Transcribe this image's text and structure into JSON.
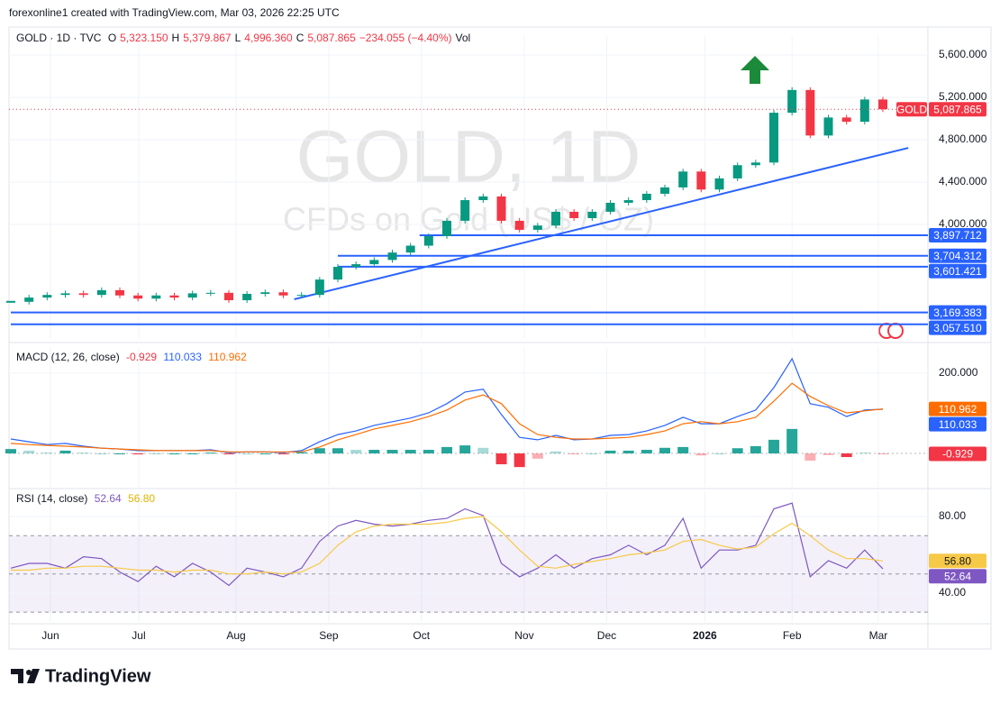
{
  "header": {
    "attribution": "forexonline1 created with TradingView.com, Mar 03, 2026 22:25 UTC",
    "symbol": "GOLD · 1D · TVC",
    "ohlc": [
      {
        "key": "O",
        "value": "5,323.150"
      },
      {
        "key": "H",
        "value": "5,379.867"
      },
      {
        "key": "L",
        "value": "4,996.360"
      },
      {
        "key": "C",
        "value": "5,087.865"
      }
    ],
    "change": "−234.055 (−4.40%)",
    "volume_key": "Vol"
  },
  "footer": {
    "brand": "TradingView"
  },
  "chart_data": [
    {
      "type": "candlestick",
      "title": "GOLD, 1D",
      "subtitle": "CFDs on Gold (US$ / OZ)",
      "badge": "GOLD",
      "up_color": "#089981",
      "down_color": "#f23645",
      "grid": true,
      "values": [
        3270,
        3310,
        3335,
        3350,
        3335,
        3380,
        3330,
        3300,
        3330,
        3310,
        3350,
        3355,
        3285,
        3345,
        3360,
        3330,
        3335,
        3480,
        3600,
        3625,
        3665,
        3735,
        3800,
        3890,
        4035,
        4230,
        4265,
        4035,
        3950,
        3990,
        4120,
        4060,
        4120,
        4205,
        4230,
        4290,
        4350,
        4500,
        4330,
        4435,
        4560,
        4585,
        5055,
        5270,
        4840,
        5010,
        4970,
        5180,
        5087.865
      ],
      "last_value_label": "5,087.865",
      "xlim": [
        0,
        48
      ],
      "xticks": [
        {
          "value": 2.18,
          "label": "Jun"
        },
        {
          "value": 7.04,
          "label": "Jul"
        },
        {
          "value": 12.4,
          "label": "Aug"
        },
        {
          "value": 17.5,
          "label": "Sep"
        },
        {
          "value": 22.6,
          "label": "Oct"
        },
        {
          "value": 28.26,
          "label": "Nov"
        },
        {
          "value": 32.8,
          "label": "Dec"
        },
        {
          "value": 38.2,
          "label": "2026"
        },
        {
          "value": 43.0,
          "label": "Feb"
        },
        {
          "value": 47.75,
          "label": "Mar"
        }
      ],
      "ylim": [
        2928,
        5779
      ],
      "yticks": [
        {
          "value": 4000,
          "label": "4,000.000"
        },
        {
          "value": 4400,
          "label": "4,400.000"
        },
        {
          "value": 4800,
          "label": "4,800.000"
        },
        {
          "value": 5200,
          "label": "5,200.000"
        },
        {
          "value": 5600,
          "label": "5,600.000"
        }
      ],
      "level_color": "#2962ff",
      "levels": [
        {
          "value": 3897.712,
          "label": "3,897.712",
          "start": 22.5
        },
        {
          "value": 3704.312,
          "label": "3,704.312",
          "start": 18
        },
        {
          "value": 3601.421,
          "label": "3,601.421",
          "start": 18
        },
        {
          "value": 3169.383,
          "label": "3,169.383",
          "start": 0
        },
        {
          "value": 3057.51,
          "label": "3,057.510",
          "start": 0
        }
      ],
      "trendlines": [
        {
          "x": [
            15.6,
            49.4
          ],
          "y": [
            3294,
            4723
          ]
        }
      ]
    },
    {
      "type": "macd",
      "title": "MACD (12, 26, close)",
      "xlim": [
        0,
        48
      ],
      "ylim": [
        -83,
        265
      ],
      "grid": true,
      "yticks": [
        {
          "value": 200,
          "label": "200.000"
        }
      ],
      "series": [
        {
          "color": "#2962ff",
          "values": [
            36,
            29,
            22,
            25,
            18,
            13,
            11,
            7,
            7,
            7,
            7,
            9,
            2,
            4,
            4,
            2,
            7,
            29,
            47,
            56,
            70,
            79,
            88,
            101,
            124,
            153,
            160,
            97,
            40,
            34,
            45,
            34,
            36,
            45,
            47,
            56,
            70,
            90,
            74,
            74,
            92,
            108,
            164,
            236,
            124,
            115,
            92,
            108,
            110.033
          ]
        },
        {
          "color": "#ff6d00",
          "values": [
            25,
            22,
            20,
            18,
            16,
            13,
            11,
            9,
            7,
            7,
            7,
            7,
            4,
            4,
            4,
            4,
            4,
            16,
            34,
            47,
            61,
            70,
            79,
            92,
            108,
            133,
            146,
            124,
            74,
            47,
            40,
            36,
            36,
            38,
            40,
            47,
            56,
            74,
            79,
            74,
            79,
            90,
            130,
            175,
            142,
            119,
            101,
            106,
            110.962
          ]
        },
        {
          "type": "histogram",
          "colors": [
            "#26a69a",
            "#f23645"
          ],
          "values": [
            11,
            7,
            2,
            7,
            2,
            0,
            0,
            -2,
            0,
            0,
            0,
            2,
            -2,
            0,
            0,
            -2,
            3,
            13,
            13,
            9,
            9,
            9,
            9,
            9,
            16,
            20,
            14,
            -27,
            -34,
            -13,
            5,
            -2,
            0,
            7,
            7,
            9,
            14,
            16,
            -5,
            0,
            13,
            18,
            34,
            61,
            -18,
            -4,
            -9,
            2,
            -0.929
          ]
        }
      ]
    },
    {
      "type": "rsi",
      "title": "RSI (14, close)",
      "xlim": [
        0,
        48
      ],
      "ylim": [
        24.9,
        93.2
      ],
      "grid": true,
      "yticks": [
        {
          "value": 80,
          "label": "80.00"
        },
        {
          "value": 40,
          "label": "40.00"
        }
      ],
      "levels": [
        30,
        50,
        70
      ],
      "series": [
        {
          "color": "#7e57c2",
          "values": [
            53,
            55.5,
            55.5,
            53,
            59,
            58,
            51,
            46,
            54,
            48.5,
            55.5,
            51,
            44,
            53,
            51,
            48.5,
            53,
            67,
            75,
            78,
            76,
            75,
            76,
            78,
            79,
            84,
            80.5,
            55.5,
            48.5,
            53,
            60,
            53,
            58,
            60,
            65,
            60,
            65,
            79,
            53,
            62.5,
            62.5,
            65,
            84,
            87,
            48.5,
            57,
            53,
            62.5,
            52.64
          ]
        },
        {
          "color": "#f7c948",
          "values": [
            52,
            52,
            53,
            53,
            54,
            54,
            53,
            52,
            52,
            51,
            52,
            52,
            50,
            50,
            51,
            50,
            51,
            55.5,
            65,
            72,
            75,
            76,
            76,
            76,
            77,
            79,
            80,
            72,
            62.5,
            54,
            53,
            55,
            56.5,
            58,
            60,
            61,
            62.5,
            67,
            68,
            65,
            63,
            64,
            71,
            76.5,
            70,
            62.5,
            58,
            58,
            56.8
          ],
          "last_value_label": "56.80"
        }
      ]
    }
  ]
}
